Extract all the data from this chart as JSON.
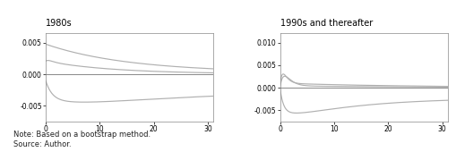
{
  "title_left": "1980s",
  "title_right": "1990s and thereafter",
  "note": "Note: Based on a bootstrap method.\nSource: Author.",
  "xlim": [
    0,
    31
  ],
  "left_ylim": [
    -0.0075,
    0.0065
  ],
  "right_ylim": [
    -0.0075,
    0.012
  ],
  "left_yticks": [
    -0.005,
    0.0,
    0.005
  ],
  "right_yticks": [
    -0.005,
    0.0,
    0.005,
    0.01
  ],
  "xticks": [
    0,
    10,
    20,
    30
  ],
  "line_color": "#b0b0b0",
  "zero_line_color": "#888888",
  "bg_color": "#ffffff"
}
